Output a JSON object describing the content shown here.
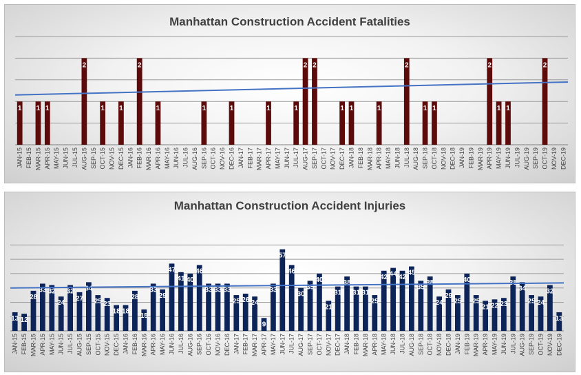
{
  "chart_data": [
    {
      "type": "bar",
      "title": "Manhattan Construction Accident Fatalities",
      "categories": [
        "JAN-15",
        "FEB-15",
        "MAR-15",
        "APR-15",
        "MAY-15",
        "JUN-15",
        "JUL-15",
        "AUG-15",
        "SEP-15",
        "OCT-15",
        "NOV-15",
        "DEC-15",
        "JAN-16",
        "FEB-16",
        "MAR-16",
        "APR-16",
        "MAY-16",
        "JUN-16",
        "JUL-16",
        "AUG-16",
        "SEP-16",
        "OCT-16",
        "NOV-16",
        "DEC-16",
        "JAN-17",
        "FEB-17",
        "MAR-17",
        "APR-17",
        "MAY-17",
        "JUN-17",
        "JUL-17",
        "AUG-17",
        "SEP-17",
        "OCT-17",
        "NOV-17",
        "DEC-17",
        "JAN-18",
        "FEB-18",
        "MAR-18",
        "APR-18",
        "MAY-18",
        "JUN-18",
        "JUL-18",
        "AUG-18",
        "SEP-18",
        "OCT-18",
        "NOV-18",
        "DEC-18",
        "JAN-19",
        "FEB-19",
        "MAR-19",
        "APR-19",
        "MAY-19",
        "JUN-19",
        "JUL-19",
        "AUG-19",
        "SEP-19",
        "OCT-19",
        "NOV-19",
        "DEC-19"
      ],
      "values": [
        1,
        0,
        1,
        1,
        0,
        0,
        0,
        2,
        0,
        1,
        0,
        1,
        0,
        2,
        0,
        1,
        0,
        0,
        0,
        0,
        1,
        0,
        0,
        1,
        0,
        0,
        0,
        1,
        0,
        0,
        1,
        2,
        2,
        0,
        0,
        1,
        1,
        0,
        0,
        1,
        0,
        0,
        2,
        0,
        1,
        1,
        0,
        0,
        0,
        0,
        0,
        2,
        1,
        1,
        0,
        0,
        0,
        2,
        0,
        0
      ],
      "trendline": {
        "start": 1.15,
        "end": 1.45
      },
      "ylim": [
        0,
        2.5
      ],
      "gridlines": [
        0.5,
        1.0,
        1.5,
        2.0,
        2.5
      ],
      "bar_color": "#5c0a0a",
      "trend_color": "#4472c4"
    },
    {
      "type": "bar",
      "title": "Manhattan Construction Accident Injuries",
      "categories": [
        "JAN-15",
        "FEB-15",
        "MAR-15",
        "APR-15",
        "MAY-15",
        "JUN-15",
        "JUL-15",
        "AUG-15",
        "SEP-15",
        "OCT-15",
        "NOV-15",
        "DEC-15",
        "JAN-16",
        "FEB-16",
        "MAR-16",
        "APR-16",
        "MAY-16",
        "JUN-16",
        "JUL-16",
        "AUG-16",
        "SEP-16",
        "OCT-16",
        "NOV-16",
        "DEC-16",
        "JAN-17",
        "FEB-17",
        "MAR-17",
        "APR-17",
        "MAY-17",
        "JUN-17",
        "JUL-17",
        "AUG-17",
        "SEP-17",
        "OCT-17",
        "NOV-17",
        "DEC-17",
        "JAN-18",
        "FEB-18",
        "MAR-18",
        "APR-18",
        "MAY-18",
        "JUN-18",
        "JUL-18",
        "AUG-18",
        "SEP-18",
        "OCT-18",
        "NOV-18",
        "DEC-18",
        "JAN-19",
        "FEB-19",
        "MAR-19",
        "APR-19",
        "MAY-19",
        "JUN-19",
        "JUL-19",
        "AUG-19",
        "SEP-19",
        "OCT-19",
        "NOV-19",
        "DEC-19"
      ],
      "values": [
        13,
        12,
        28,
        33,
        32,
        24,
        32,
        27,
        34,
        25,
        23,
        18,
        18,
        28,
        15,
        33,
        29,
        47,
        41,
        40,
        46,
        33,
        33,
        33,
        25,
        26,
        24,
        9,
        33,
        57,
        46,
        30,
        35,
        40,
        21,
        31,
        38,
        31,
        31,
        25,
        42,
        44,
        42,
        45,
        35,
        38,
        24,
        29,
        25,
        40,
        25,
        21,
        22,
        23,
        38,
        34,
        25,
        24,
        32,
        13
      ],
      "trendline": {
        "start": 30,
        "end": 33.5
      },
      "ylim": [
        0,
        65
      ],
      "gridlines": [
        10,
        20,
        30,
        40,
        50,
        60
      ],
      "bar_color": "#0d2458",
      "trend_color": "#4472c4"
    }
  ]
}
